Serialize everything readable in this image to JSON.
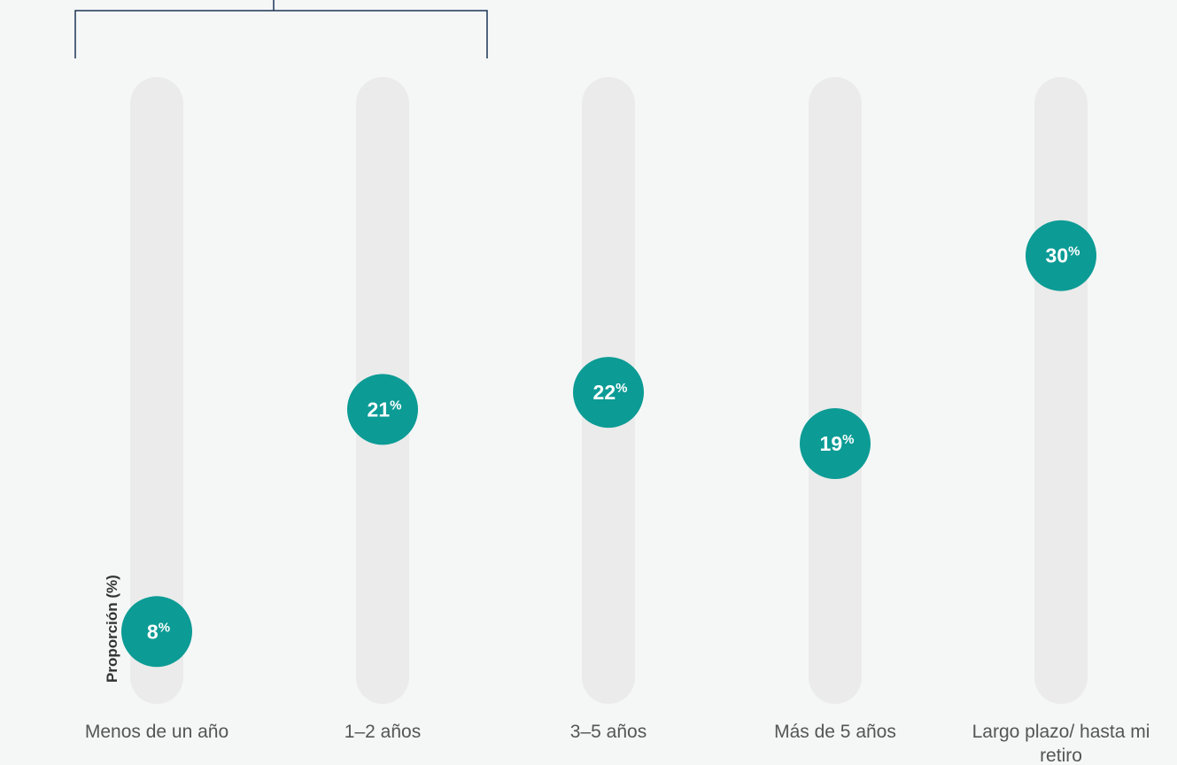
{
  "chart_data": {
    "type": "dot",
    "title": "",
    "xlabel": "",
    "ylabel": "Proporción (%)",
    "ylim": [
      0,
      34
    ],
    "categories": [
      [
        "Menos de un año"
      ],
      [
        "1–2 años"
      ],
      [
        "3–5 años"
      ],
      [
        "Más de 5 años"
      ],
      [
        "Largo plazo/ hasta mi",
        "retiro"
      ]
    ],
    "values": [
      8,
      21,
      22,
      19,
      30
    ],
    "value_suffix": "%",
    "color": "#0c9b95",
    "track_color": "#ebebeb",
    "bracket_color": "#1c3557",
    "bracket_categories": [
      0,
      1
    ],
    "grid": false
  }
}
